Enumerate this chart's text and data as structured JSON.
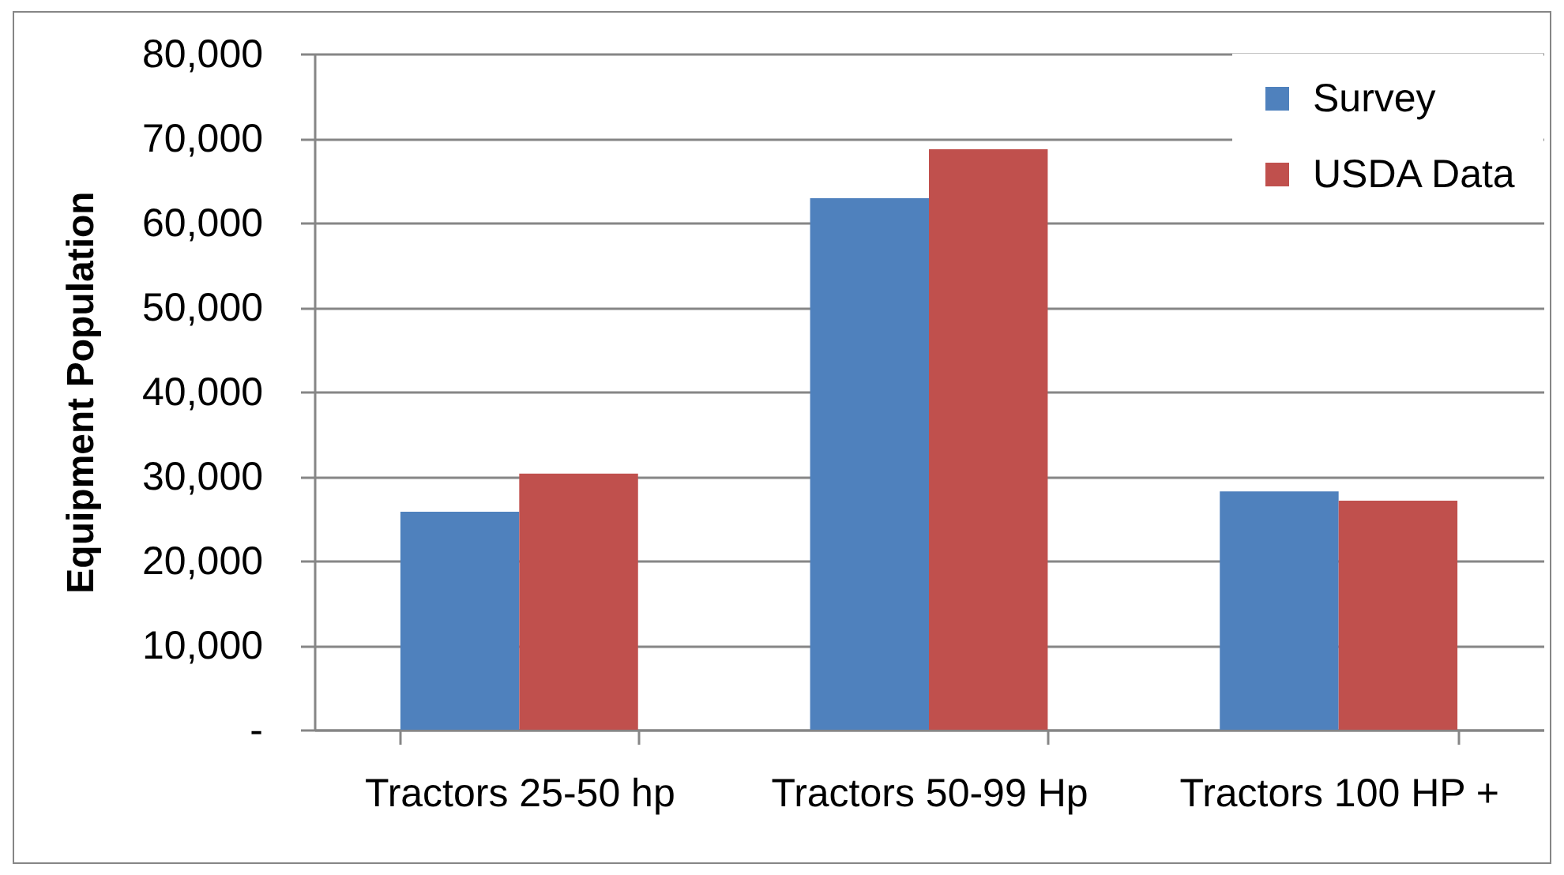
{
  "chart_data": {
    "type": "bar",
    "ylabel": "Equipment Population",
    "categories": [
      "Tractors 25-50 hp",
      "Tractors 50-99 Hp",
      "Tractors 100 HP +"
    ],
    "series": [
      {
        "name": "Survey",
        "color": "#4f81bd",
        "values": [
          25800,
          62900,
          28200
        ]
      },
      {
        "name": "USDA Data",
        "color": "#c0504d",
        "values": [
          30300,
          68700,
          27100
        ]
      }
    ],
    "ylim": [
      0,
      80000
    ],
    "yticks": [
      {
        "value": 0,
        "label": "-"
      },
      {
        "value": 10000,
        "label": "10,000"
      },
      {
        "value": 20000,
        "label": "20,000"
      },
      {
        "value": 30000,
        "label": "30,000"
      },
      {
        "value": 40000,
        "label": "40,000"
      },
      {
        "value": 50000,
        "label": "50,000"
      },
      {
        "value": 60000,
        "label": "60,000"
      },
      {
        "value": 70000,
        "label": "70,000"
      },
      {
        "value": 80000,
        "label": "80,000"
      }
    ],
    "grid": "y",
    "legend": "top right"
  }
}
